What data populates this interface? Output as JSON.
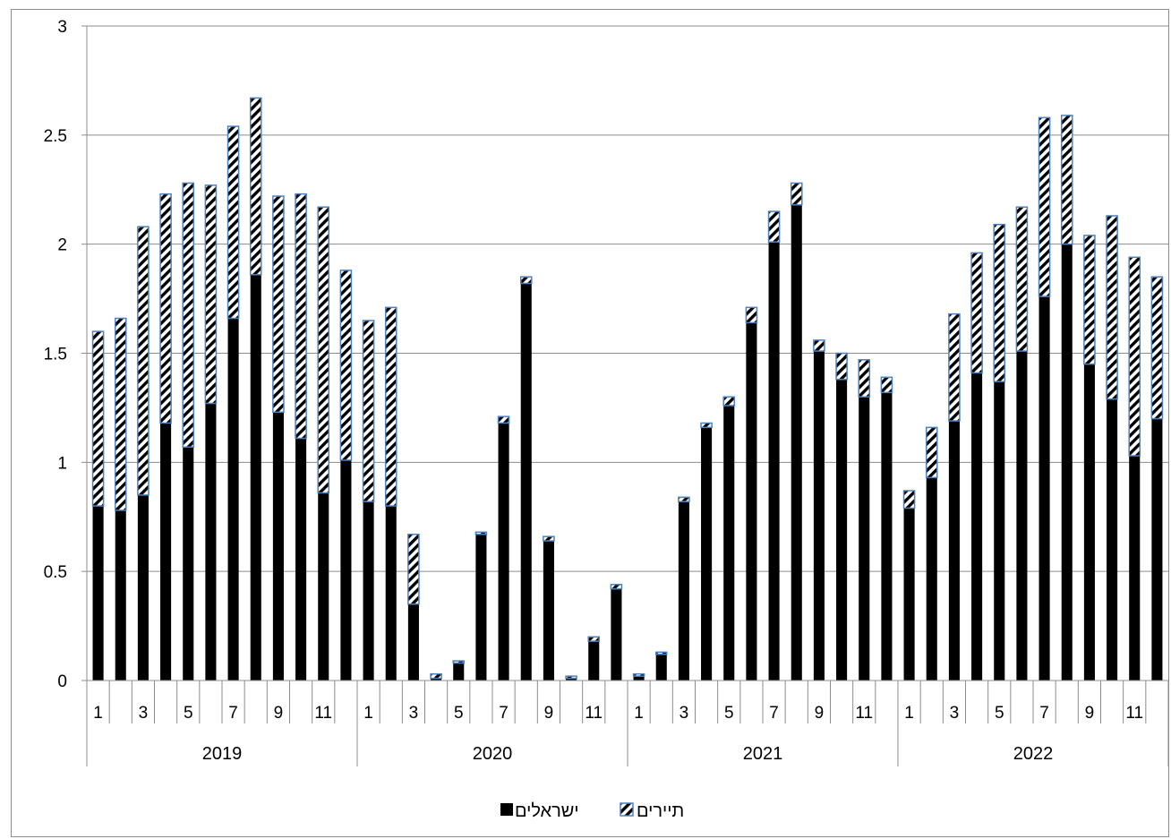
{
  "chart_data": {
    "type": "bar",
    "stacked": true,
    "title": "",
    "xlabel": "",
    "ylabel": "",
    "ylim": [
      0,
      3
    ],
    "yticks": [
      "0",
      "0.5",
      "1",
      "1.5",
      "2",
      "2.5",
      "3"
    ],
    "grid": "horizontal",
    "legend_position": "bottom",
    "groups": [
      "2019",
      "2020",
      "2021",
      "2022"
    ],
    "month_tick_labels": [
      "1",
      "3",
      "5",
      "7",
      "9",
      "11"
    ],
    "months_per_group": 12,
    "series": [
      {
        "name": "ישראלים",
        "fill": "solid",
        "color": "#000000",
        "values": [
          0.8,
          0.78,
          0.85,
          1.18,
          1.07,
          1.27,
          1.66,
          1.86,
          1.23,
          1.11,
          0.86,
          1.01,
          0.82,
          0.8,
          0.35,
          0.01,
          0.08,
          0.67,
          1.18,
          1.82,
          0.64,
          0.01,
          0.18,
          0.42,
          0.02,
          0.12,
          0.82,
          1.16,
          1.26,
          1.64,
          2.01,
          2.18,
          1.51,
          1.38,
          1.3,
          1.32,
          0.79,
          0.93,
          1.19,
          1.41,
          1.37,
          1.51,
          1.76,
          2.0,
          1.45,
          1.29,
          1.03,
          1.2
        ]
      },
      {
        "name": "תיירים",
        "fill": "hatched",
        "color": "#4f81bd",
        "values": [
          0.8,
          0.88,
          1.23,
          1.05,
          1.21,
          1.0,
          0.88,
          0.81,
          0.99,
          1.12,
          1.31,
          0.87,
          0.83,
          0.91,
          0.32,
          0.02,
          0.01,
          0.01,
          0.03,
          0.03,
          0.02,
          0.01,
          0.02,
          0.02,
          0.01,
          0.01,
          0.02,
          0.02,
          0.04,
          0.07,
          0.14,
          0.1,
          0.05,
          0.12,
          0.17,
          0.07,
          0.08,
          0.23,
          0.49,
          0.55,
          0.72,
          0.66,
          0.82,
          0.59,
          0.59,
          0.84,
          0.91,
          0.65
        ]
      }
    ]
  }
}
